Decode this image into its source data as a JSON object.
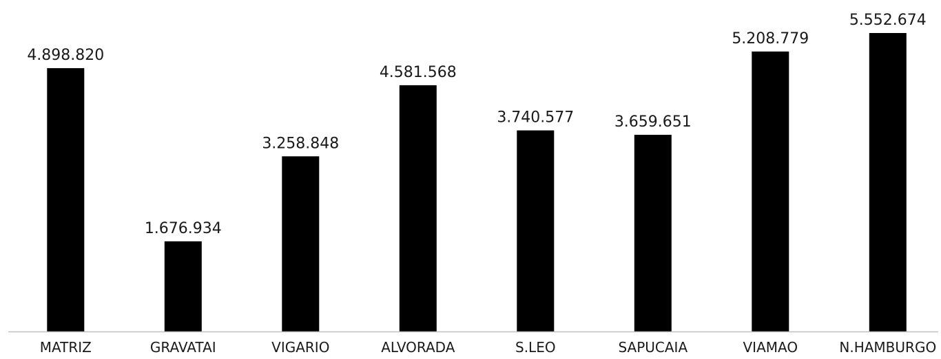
{
  "chart_data": {
    "type": "bar",
    "categories": [
      "MATRIZ",
      "GRAVATAI",
      "VIGARIO",
      "ALVORADA",
      "S.LEO",
      "SAPUCAIA",
      "VIAMAO",
      "N.HAMBURGO"
    ],
    "values": [
      4898820,
      1676934,
      3258848,
      4581568,
      3740577,
      3659651,
      5208779,
      5552674
    ],
    "value_labels": [
      "4.898.820",
      "1.676.934",
      "3.258.848",
      "4.581.568",
      "3.740.577",
      "3.659.651",
      "5.208.779",
      "5.552.674"
    ],
    "title": "",
    "xlabel": "",
    "ylabel": "",
    "ylim": [
      0,
      6000000
    ],
    "grid": false,
    "legend": "none",
    "colors": {
      "bar": "#000000",
      "axis": "#bfbfbf",
      "text": "#1a1a1a"
    }
  }
}
